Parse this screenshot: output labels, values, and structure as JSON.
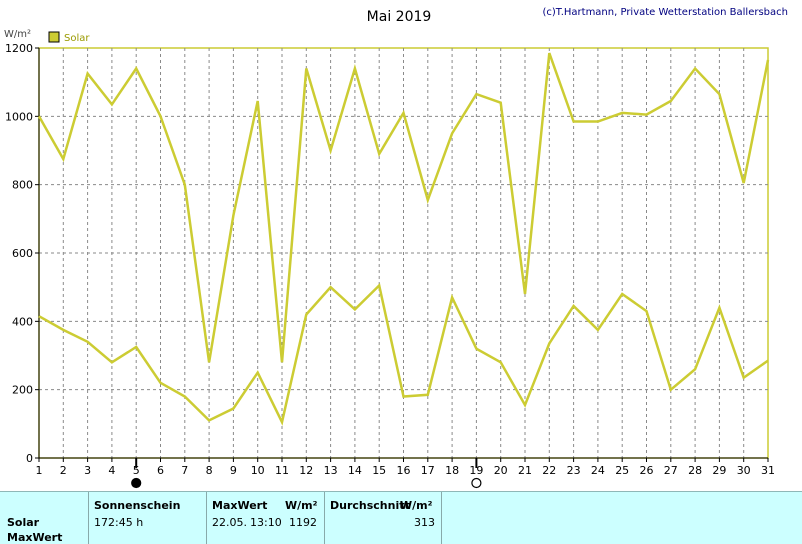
{
  "header": {
    "title": "Mai 2019",
    "copyright": "(c)T.Hartmann, Private Wetterstation Ballersbach"
  },
  "legend": {
    "label": "Solar",
    "color": "#cccc33"
  },
  "colors": {
    "line": "#cccc33",
    "border": "#cccc33",
    "legend_text": "#9a9a00"
  },
  "chart_data": {
    "type": "line",
    "ylabel": "W/m²",
    "ylim": [
      0,
      1200
    ],
    "yticks": [
      0,
      200,
      400,
      600,
      800,
      1000,
      1200
    ],
    "x": [
      1,
      2,
      3,
      4,
      5,
      6,
      7,
      8,
      9,
      10,
      11,
      12,
      13,
      14,
      15,
      16,
      17,
      18,
      19,
      20,
      21,
      22,
      23,
      24,
      25,
      26,
      27,
      28,
      29,
      30,
      31
    ],
    "grid": true,
    "series": [
      {
        "name": "",
        "values": [
          1000,
          875,
          1125,
          1035,
          1140,
          1000,
          800,
          280,
          710,
          1045,
          280,
          1140,
          900,
          1140,
          890,
          1010,
          755,
          950,
          1065,
          1040,
          480,
          1185,
          985,
          985,
          1010,
          1005,
          1045,
          1140,
          1065,
          805,
          1165
        ]
      },
      {
        "name": "",
        "values": [
          415,
          375,
          340,
          280,
          325,
          220,
          180,
          110,
          145,
          250,
          105,
          420,
          500,
          435,
          505,
          180,
          185,
          470,
          320,
          280,
          155,
          335,
          445,
          375,
          480,
          430,
          200,
          260,
          440,
          235,
          285
        ]
      }
    ],
    "markers": [
      {
        "day": 5,
        "symbol": "●"
      },
      {
        "day": 19,
        "symbol": "○"
      }
    ]
  },
  "table": {
    "row_labels": [
      "Solar",
      "MaxWert"
    ],
    "sonnenschein": {
      "header": "Sonnenschein",
      "value": "172:45 h"
    },
    "maxwert": {
      "header": "MaxWert",
      "unit": "W/m²",
      "date": "22.05.",
      "time": "13:10",
      "value": "1192"
    },
    "durchschnitt": {
      "header": "Durchschnitt",
      "unit": "W/m²",
      "value": "313"
    }
  }
}
